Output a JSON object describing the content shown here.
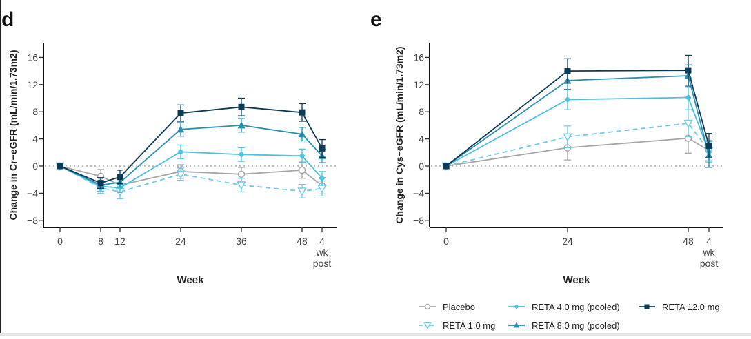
{
  "chart_data": [
    {
      "panel_label": "d",
      "type": "line",
      "title": "",
      "xlabel": "Week",
      "ylabel": "Change in Cr−eGFR (mL/min/1.73m2)",
      "x_ticks": [
        "0",
        "8",
        "12",
        "24",
        "36",
        "48",
        "4"
      ],
      "x_tick_post_label": [
        "wk",
        "post"
      ],
      "x": [
        0,
        8,
        12,
        24,
        36,
        48,
        52
      ],
      "y_ticks": [
        "16",
        "12",
        "8",
        "4",
        "0",
        "−4",
        "−8"
      ],
      "y_tick_values": [
        16,
        12,
        8,
        4,
        0,
        -4,
        -8
      ],
      "ylim": [
        -9.5,
        18
      ],
      "reference_line": 0,
      "series": [
        {
          "name": "Placebo",
          "values": [
            0,
            -1.5,
            -2.8,
            -0.8,
            -1.2,
            -0.6,
            -2.9
          ],
          "err": [
            0,
            1.0,
            1.0,
            1.0,
            1.0,
            1.2,
            1.2
          ]
        },
        {
          "name": "RETA 1.0 mg",
          "values": [
            0,
            -3.2,
            -3.8,
            -1.2,
            -2.8,
            -3.7,
            -3.3
          ],
          "err": [
            0,
            0.8,
            1.0,
            0.9,
            1.0,
            1.0,
            1.1
          ]
        },
        {
          "name": "RETA 4.0 mg (pooled)",
          "values": [
            0,
            -3.0,
            -3.2,
            2.1,
            1.7,
            1.5,
            -1.8
          ],
          "err": [
            0,
            0.7,
            0.7,
            1.0,
            1.0,
            1.0,
            1.0
          ]
        },
        {
          "name": "RETA 8.0 mg (pooled)",
          "values": [
            0,
            -2.8,
            -2.4,
            5.4,
            6.0,
            4.7,
            1.5
          ],
          "err": [
            0,
            0.6,
            0.7,
            1.0,
            1.0,
            1.0,
            1.0
          ]
        },
        {
          "name": "RETA 12.0 mg",
          "values": [
            0,
            -2.5,
            -1.6,
            7.8,
            8.7,
            7.9,
            2.6
          ],
          "err": [
            0,
            0.8,
            1.0,
            1.2,
            1.3,
            1.3,
            1.3
          ]
        }
      ]
    },
    {
      "panel_label": "e",
      "type": "line",
      "title": "",
      "xlabel": "Week",
      "ylabel": "Change in Cys−eGFR (mL/min/1.73m2)",
      "x_ticks": [
        "0",
        "24",
        "48",
        "4"
      ],
      "x_tick_post_label": [
        "wk",
        "post"
      ],
      "x": [
        0,
        24,
        48,
        52
      ],
      "y_ticks": [
        "16",
        "12",
        "8",
        "4",
        "0",
        "−4",
        "−8"
      ],
      "y_tick_values": [
        16,
        12,
        8,
        4,
        0,
        -4,
        -8
      ],
      "ylim": [
        -9.5,
        18
      ],
      "reference_line": 0,
      "series": [
        {
          "name": "Placebo",
          "values": [
            0,
            2.7,
            4.1,
            2.3
          ],
          "err": [
            0,
            1.8,
            2.2,
            1.5
          ]
        },
        {
          "name": "RETA 1.0 mg",
          "values": [
            0,
            4.3,
            6.3,
            2.3
          ],
          "err": [
            0,
            1.6,
            2.0,
            1.5
          ]
        },
        {
          "name": "RETA 4.0 mg (pooled)",
          "values": [
            0,
            9.8,
            10.1,
            2.1
          ],
          "err": [
            0,
            1.5,
            1.8,
            1.5
          ]
        },
        {
          "name": "RETA 8.0 mg (pooled)",
          "values": [
            0,
            12.6,
            13.3,
            1.6
          ],
          "err": [
            0,
            1.3,
            1.6,
            1.8
          ]
        },
        {
          "name": "RETA 12.0 mg",
          "values": [
            0,
            14.0,
            14.1,
            3.0
          ],
          "err": [
            0,
            1.8,
            2.2,
            1.8
          ]
        }
      ]
    }
  ],
  "legend": {
    "placement": "bottom-right",
    "items": [
      {
        "label": "Placebo",
        "marker": "open-circle",
        "color": "#a6a6a6",
        "dash": false
      },
      {
        "label": "RETA 4.0 mg (pooled)",
        "marker": "diamond",
        "color": "#4cc0e0",
        "dash": false
      },
      {
        "label": "RETA 12.0 mg",
        "marker": "square",
        "color": "#0d3b55",
        "dash": false
      },
      {
        "label": "RETA 1.0 mg",
        "marker": "open-triangle-down",
        "color": "#6fcbe6",
        "dash": true
      },
      {
        "label": "RETA 8.0 mg (pooled)",
        "marker": "triangle-up",
        "color": "#2b8fb0",
        "dash": false
      }
    ]
  },
  "series_styles": {
    "Placebo": {
      "color": "#a6a6a6",
      "marker": "open-circle",
      "dash": false
    },
    "RETA 1.0 mg": {
      "color": "#6fcbe6",
      "marker": "open-triangle-down",
      "dash": true
    },
    "RETA 4.0 mg (pooled)": {
      "color": "#4cc0e0",
      "marker": "diamond",
      "dash": false
    },
    "RETA 8.0 mg (pooled)": {
      "color": "#2b8fb0",
      "marker": "triangle-up",
      "dash": false
    },
    "RETA 12.0 mg": {
      "color": "#0d3b55",
      "marker": "square",
      "dash": false
    }
  }
}
